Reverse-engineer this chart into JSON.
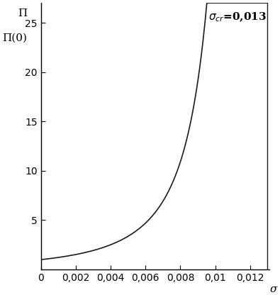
{
  "sigma_cr": 0.013,
  "x_min": 0.0,
  "x_max": 0.013,
  "y_min": 0.0,
  "y_max": 27.0,
  "y_ticks": [
    5,
    10,
    15,
    20,
    25
  ],
  "x_ticks": [
    0,
    0.002,
    0.004,
    0.006,
    0.008,
    0.01,
    0.012
  ],
  "x_tick_labels": [
    "0",
    "0,002",
    "0,004",
    "0,006",
    "0,008",
    "0,01",
    "0,012"
  ],
  "ylabel_line1": "Π",
  "ylabel_line2": "Π(0)",
  "xlabel": "σ",
  "annotation_text": "σ_cr=0,013",
  "line_color": "#1a1a1a",
  "bg_color": "#ffffff",
  "vline_color": "#1a1a1a",
  "curve_power": 2.5,
  "figsize": [
    3.95,
    4.16
  ],
  "dpi": 100
}
